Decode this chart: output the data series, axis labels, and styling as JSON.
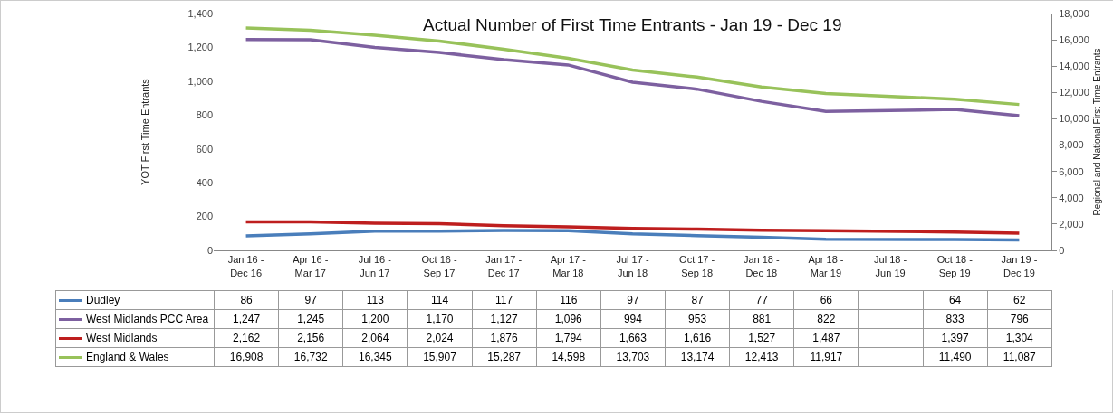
{
  "chart_data": {
    "type": "line",
    "title": "Actual Number of First Time Entrants - Jan 19 - Dec 19",
    "ylabel": "YOT First Time Entrants",
    "y2label": "Regional and National First Time Entrants",
    "categories": [
      "Jan 16 - Dec 16",
      "Apr 16 - Mar 17",
      "Jul 16 - Jun 17",
      "Oct 16 - Sep 17",
      "Jan 17 - Dec 17",
      "Apr 17 - Mar 18",
      "Jul 17 - Jun 18",
      "Oct 17 - Sep 18",
      "Jan 18 - Dec 18",
      "Apr 18 - Mar 19",
      "Jul 18 - Jun 19",
      "Oct 18 - Sep 19",
      "Jan 19 - Dec 19"
    ],
    "series": [
      {
        "name": "Dudley",
        "color": "#4a7ebb",
        "values": [
          86,
          97,
          113,
          114,
          117,
          116,
          97,
          87,
          77,
          66,
          null,
          64,
          62
        ],
        "value_labels": [
          "86",
          "97",
          "113",
          "114",
          "117",
          "116",
          "97",
          "87",
          "77",
          "66",
          null,
          "64",
          "62"
        ]
      },
      {
        "name": "West Midlands PCC Area",
        "color": "#7d60a0",
        "values": [
          1247,
          1245,
          1200,
          1170,
          1127,
          1096,
          994,
          953,
          881,
          822,
          null,
          833,
          796
        ],
        "value_labels": [
          "1,247",
          "1,245",
          "1,200",
          "1,170",
          "1,127",
          "1,096",
          "994",
          "953",
          "881",
          "822",
          null,
          "833",
          "796"
        ]
      },
      {
        "name": "West Midlands",
        "color": "#be1e1e",
        "axis": "y2",
        "values": [
          2162,
          2156,
          2064,
          2024,
          1876,
          1794,
          1663,
          1616,
          1527,
          1487,
          null,
          1397,
          1304
        ],
        "value_labels": [
          "2,162",
          "2,156",
          "2,064",
          "2,024",
          "1,876",
          "1,794",
          "1,663",
          "1,616",
          "1,527",
          "1,487",
          null,
          "1,397",
          "1,304"
        ]
      },
      {
        "name": "England & Wales",
        "color": "#98c25a",
        "axis": "y2",
        "values": [
          16908,
          16732,
          16345,
          15907,
          15287,
          14598,
          13703,
          13174,
          12413,
          11917,
          null,
          11490,
          11087
        ],
        "value_labels": [
          "16,908",
          "16,732",
          "16,345",
          "15,907",
          "15,287",
          "14,598",
          "13,703",
          "13,174",
          "12,413",
          "11,917",
          null,
          "11,490",
          "11,087"
        ]
      }
    ],
    "ylim": [
      0,
      1400
    ],
    "yticks": [
      {
        "value": 0,
        "label": "0"
      },
      {
        "value": 200,
        "label": "200"
      },
      {
        "value": 400,
        "label": "400"
      },
      {
        "value": 600,
        "label": "600"
      },
      {
        "value": 800,
        "label": "800"
      },
      {
        "value": 1000,
        "label": "1,000"
      },
      {
        "value": 1200,
        "label": "1,200"
      },
      {
        "value": 1400,
        "label": "1,400"
      }
    ],
    "y2lim": [
      0,
      18000
    ],
    "y2ticks": [
      {
        "value": 0,
        "label": "0"
      },
      {
        "value": 2000,
        "label": "2,000"
      },
      {
        "value": 4000,
        "label": "4,000"
      },
      {
        "value": 6000,
        "label": "6,000"
      },
      {
        "value": 8000,
        "label": "8,000"
      },
      {
        "value": 10000,
        "label": "10,000"
      },
      {
        "value": 12000,
        "label": "12,000"
      },
      {
        "value": 14000,
        "label": "14,000"
      },
      {
        "value": 16000,
        "label": "16,000"
      },
      {
        "value": 18000,
        "label": "18,000"
      }
    ],
    "grid": false,
    "legend": "bottom",
    "marker": "none",
    "line_style": "solid"
  }
}
